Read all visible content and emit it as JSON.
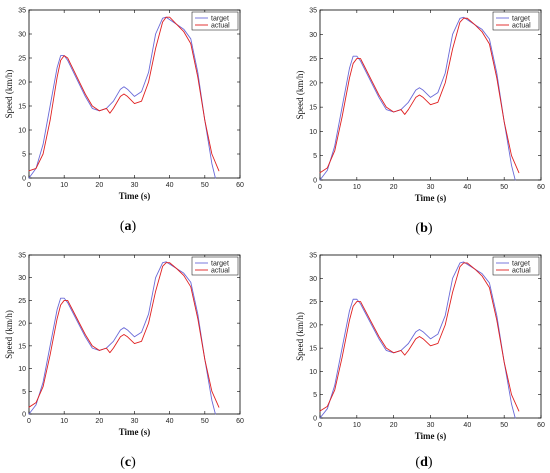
{
  "colors": {
    "target": "#6a6ad8",
    "actual": "#e02020",
    "axis": "#000000"
  },
  "chart_data": [
    {
      "panel_label": "(a)",
      "type": "line",
      "xlabel": "Time (s)",
      "ylabel": "Speed (km/h)",
      "xlim": [
        0,
        60
      ],
      "ylim": [
        0,
        35
      ],
      "xticks": [
        "0",
        "10",
        "20",
        "30",
        "40",
        "50",
        "60"
      ],
      "yticks": [
        "0",
        "5",
        "10",
        "15",
        "20",
        "25",
        "30",
        "35"
      ],
      "legend_position": "top-right",
      "grid": false,
      "series": [
        {
          "name": "target",
          "color": "#6a6ad8",
          "x": [
            0,
            2,
            4,
            6,
            8,
            9,
            10,
            11,
            12,
            14,
            16,
            18,
            20,
            22,
            24,
            26,
            27,
            28,
            30,
            32,
            34,
            36,
            38,
            39,
            40,
            42,
            44,
            46,
            48,
            50,
            52,
            53
          ],
          "y": [
            0,
            2,
            7,
            15,
            23,
            25.5,
            25.5,
            24.5,
            23,
            20,
            17,
            14.5,
            14,
            14.5,
            16,
            18.5,
            19,
            18.5,
            17,
            18,
            22,
            30,
            33.3,
            33.5,
            33,
            32,
            31,
            29,
            22,
            12,
            3,
            0
          ]
        },
        {
          "name": "actual",
          "color": "#e02020",
          "x": [
            0,
            2,
            4,
            6,
            8,
            9,
            10,
            11,
            12,
            14,
            16,
            18,
            20,
            22,
            23,
            24,
            26,
            27,
            28,
            30,
            32,
            34,
            36,
            38,
            39,
            40,
            42,
            44,
            46,
            48,
            50,
            52,
            54
          ],
          "y": [
            1.5,
            2,
            5,
            12,
            21,
            24.5,
            25.5,
            25,
            23.5,
            20.5,
            17.5,
            15,
            14,
            14.5,
            13.5,
            14.5,
            17,
            17.5,
            17,
            15.5,
            16,
            20,
            27,
            32.5,
            33.5,
            33.5,
            32,
            30.5,
            28,
            21,
            12,
            5,
            1.5
          ]
        }
      ]
    },
    {
      "panel_label": "(b)",
      "type": "line",
      "xlabel": "Time (s)",
      "ylabel": "Speed (km/h)",
      "xlim": [
        0,
        60
      ],
      "ylim": [
        0,
        35
      ],
      "xticks": [
        "0",
        "10",
        "20",
        "30",
        "40",
        "50",
        "60"
      ],
      "yticks": [
        "0",
        "5",
        "10",
        "15",
        "20",
        "25",
        "30",
        "35"
      ],
      "legend_position": "top-right",
      "grid": false,
      "series": [
        {
          "name": "target",
          "color": "#6a6ad8",
          "x": [
            0,
            2,
            4,
            6,
            8,
            9,
            10,
            11,
            12,
            14,
            16,
            18,
            20,
            22,
            24,
            26,
            27,
            28,
            30,
            32,
            34,
            36,
            38,
            39,
            40,
            42,
            44,
            46,
            48,
            50,
            52,
            53
          ],
          "y": [
            0,
            2,
            7,
            15,
            23,
            25.5,
            25.5,
            24.5,
            23,
            20,
            17,
            14.5,
            14,
            14.5,
            16,
            18.5,
            19,
            18.5,
            17,
            18,
            22,
            30,
            33.3,
            33.5,
            33,
            32,
            31,
            29,
            22,
            12,
            3,
            0
          ]
        },
        {
          "name": "actual",
          "color": "#e02020",
          "x": [
            0,
            2,
            4,
            6,
            8,
            9,
            10,
            11,
            12,
            14,
            16,
            18,
            20,
            22,
            23,
            24,
            26,
            27,
            28,
            30,
            32,
            34,
            36,
            38,
            39,
            40,
            42,
            44,
            46,
            48,
            50,
            52,
            54
          ],
          "y": [
            1.5,
            2.5,
            6,
            13,
            21,
            24,
            25,
            25,
            23.5,
            20.5,
            17.5,
            15,
            14,
            14.5,
            13.5,
            14.5,
            17,
            17.5,
            17,
            15.5,
            16,
            20,
            27,
            32.5,
            33.3,
            33.3,
            32,
            30.5,
            28,
            21,
            12,
            5,
            1.5
          ]
        }
      ]
    },
    {
      "panel_label": "(c)",
      "type": "line",
      "xlabel": "Time (s)",
      "ylabel": "Speed (km/h)",
      "xlim": [
        0,
        60
      ],
      "ylim": [
        0,
        35
      ],
      "xticks": [
        "0",
        "10",
        "20",
        "30",
        "40",
        "50",
        "60"
      ],
      "yticks": [
        "0",
        "5",
        "10",
        "15",
        "20",
        "25",
        "30",
        "35"
      ],
      "legend_position": "top-right",
      "grid": false,
      "series": [
        {
          "name": "target",
          "color": "#6a6ad8",
          "x": [
            0,
            2,
            4,
            6,
            8,
            9,
            10,
            11,
            12,
            14,
            16,
            18,
            20,
            22,
            24,
            26,
            27,
            28,
            30,
            32,
            34,
            36,
            38,
            39,
            40,
            42,
            44,
            46,
            48,
            50,
            52,
            53
          ],
          "y": [
            0,
            2,
            7,
            15,
            23,
            25.5,
            25.5,
            24.5,
            23,
            20,
            17,
            14.5,
            14,
            14.5,
            16,
            18.5,
            19,
            18.5,
            17,
            18,
            22,
            30,
            33.3,
            33.5,
            33,
            32,
            31,
            29,
            22,
            12,
            3,
            0
          ]
        },
        {
          "name": "actual",
          "color": "#e02020",
          "x": [
            0,
            2,
            4,
            6,
            8,
            9,
            10,
            11,
            12,
            14,
            16,
            18,
            20,
            22,
            23,
            24,
            26,
            27,
            28,
            30,
            32,
            34,
            36,
            38,
            39,
            40,
            42,
            44,
            46,
            48,
            50,
            52,
            54
          ],
          "y": [
            1.5,
            2.5,
            6,
            13,
            21,
            24,
            25,
            25,
            23.5,
            20.5,
            17.5,
            15,
            14,
            14.5,
            13.5,
            14.5,
            17,
            17.5,
            17,
            15.5,
            16,
            20,
            27,
            32.5,
            33.3,
            33.3,
            32,
            30.5,
            28,
            21,
            12,
            5,
            1.5
          ]
        }
      ]
    },
    {
      "panel_label": "(d)",
      "type": "line",
      "xlabel": "Time (s)",
      "ylabel": "Speed (km/h)",
      "xlim": [
        0,
        60
      ],
      "ylim": [
        0,
        35
      ],
      "xticks": [
        "0",
        "10",
        "20",
        "30",
        "40",
        "50",
        "60"
      ],
      "yticks": [
        "0",
        "5",
        "10",
        "15",
        "20",
        "25",
        "30",
        "35"
      ],
      "legend_position": "top-right",
      "grid": false,
      "series": [
        {
          "name": "target",
          "color": "#6a6ad8",
          "x": [
            0,
            2,
            4,
            6,
            8,
            9,
            10,
            11,
            12,
            14,
            16,
            18,
            20,
            22,
            24,
            26,
            27,
            28,
            30,
            32,
            34,
            36,
            38,
            39,
            40,
            42,
            44,
            46,
            48,
            50,
            52,
            53
          ],
          "y": [
            0,
            2,
            7,
            15,
            23,
            25.5,
            25.5,
            24.5,
            23,
            20,
            17,
            14.5,
            14,
            14.5,
            16,
            18.5,
            19,
            18.5,
            17,
            18,
            22,
            30,
            33.3,
            33.5,
            33,
            32,
            31,
            29,
            22,
            12,
            3,
            0
          ]
        },
        {
          "name": "actual",
          "color": "#e02020",
          "x": [
            0,
            2,
            4,
            6,
            8,
            9,
            10,
            11,
            12,
            14,
            16,
            18,
            20,
            22,
            23,
            24,
            26,
            27,
            28,
            30,
            32,
            34,
            36,
            38,
            39,
            40,
            42,
            44,
            46,
            48,
            50,
            52,
            54
          ],
          "y": [
            1.5,
            2.5,
            6,
            13,
            21,
            24,
            25,
            25,
            23.5,
            20.5,
            17.5,
            15,
            14,
            14.5,
            13.5,
            14.5,
            17,
            17.5,
            17,
            15.5,
            16,
            20,
            27,
            32.5,
            33.3,
            33.3,
            32,
            30.5,
            28,
            21,
            12,
            5,
            1.5
          ]
        }
      ]
    }
  ]
}
